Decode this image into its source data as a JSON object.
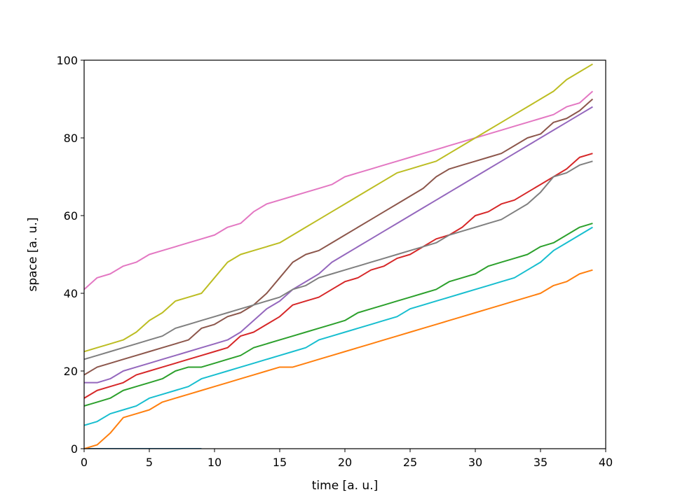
{
  "chart_data": {
    "type": "line",
    "title": "",
    "xlabel": "time [a. u.]",
    "ylabel": "space [a. u.]",
    "xlim": [
      0,
      40
    ],
    "ylim": [
      0,
      100
    ],
    "xticks": [
      0,
      5,
      10,
      15,
      20,
      25,
      30,
      35,
      40
    ],
    "yticks": [
      0,
      20,
      40,
      60,
      80,
      100
    ],
    "grid": false,
    "legend": "none",
    "palette": [
      "#1f77b4",
      "#ff7f0e",
      "#2ca02c",
      "#d62728",
      "#9467bd",
      "#8c564b",
      "#e377c2",
      "#7f7f7f",
      "#bcbd22",
      "#17becf"
    ],
    "description_note_free": true,
    "trajectory_rule": "Each series: x from start time t0 to end, y rises along the listed x/y points; segments clipped to the axes.",
    "series": [
      {
        "x": [
          0,
          1,
          2,
          3,
          4,
          5,
          6,
          7,
          8,
          9
        ],
        "y": [
          0,
          0,
          0,
          0,
          0,
          0,
          0,
          0,
          0,
          0
        ]
      },
      {
        "x": [
          0,
          1,
          2,
          3,
          4,
          5,
          6,
          7,
          8,
          9,
          10,
          11,
          12,
          13,
          14,
          15,
          16,
          17,
          18,
          19,
          20,
          21,
          22,
          23,
          24,
          25,
          26,
          27,
          28,
          29,
          30,
          31,
          32,
          33,
          34,
          35,
          36,
          37,
          38,
          39
        ],
        "y": [
          0,
          1,
          4,
          8,
          9,
          10,
          12,
          13,
          14,
          15,
          16,
          17,
          18,
          19,
          20,
          21,
          21,
          22,
          23,
          24,
          25,
          26,
          27,
          28,
          29,
          30,
          31,
          32,
          33,
          34,
          35,
          36,
          37,
          38,
          39,
          40,
          42,
          43,
          45,
          46
        ]
      },
      {
        "x": [
          0,
          1,
          2,
          3,
          4,
          5,
          6,
          7,
          8,
          9,
          10,
          11,
          12,
          13,
          14,
          15,
          16,
          17,
          18,
          19,
          20,
          21,
          22,
          23,
          24,
          25,
          26,
          27,
          28,
          29,
          30,
          31,
          32,
          33,
          34,
          35,
          36,
          37,
          38,
          39
        ],
        "y": [
          11,
          12,
          13,
          15,
          16,
          17,
          18,
          20,
          21,
          21,
          22,
          23,
          24,
          26,
          27,
          28,
          29,
          30,
          31,
          32,
          33,
          35,
          36,
          37,
          38,
          39,
          40,
          41,
          43,
          44,
          45,
          47,
          48,
          49,
          50,
          52,
          53,
          55,
          57,
          58
        ]
      },
      {
        "x": [
          0,
          1,
          2,
          3,
          4,
          5,
          6,
          7,
          8,
          9,
          10,
          11,
          12,
          13,
          14,
          15,
          16,
          17,
          18,
          19,
          20,
          21,
          22,
          23,
          24,
          25,
          26,
          27,
          28,
          29,
          30,
          31,
          32,
          33,
          34,
          35,
          36,
          37,
          38,
          39
        ],
        "y": [
          13,
          15,
          16,
          17,
          19,
          20,
          21,
          22,
          23,
          24,
          25,
          26,
          29,
          30,
          32,
          34,
          37,
          38,
          39,
          41,
          43,
          44,
          46,
          47,
          49,
          50,
          52,
          54,
          55,
          57,
          60,
          61,
          63,
          64,
          66,
          68,
          70,
          72,
          75,
          76
        ]
      },
      {
        "x": [
          0,
          1,
          2,
          3,
          4,
          5,
          6,
          7,
          8,
          9,
          10,
          11,
          12,
          13,
          14,
          15,
          16,
          17,
          18,
          19,
          20,
          21,
          22,
          23,
          24,
          25,
          26,
          27,
          28,
          29,
          30,
          31,
          32,
          33,
          34,
          35,
          36,
          37,
          38,
          39
        ],
        "y": [
          17,
          17,
          18,
          20,
          21,
          22,
          23,
          24,
          25,
          26,
          27,
          28,
          30,
          33,
          36,
          38,
          41,
          43,
          45,
          48,
          50,
          52,
          54,
          56,
          58,
          60,
          62,
          64,
          66,
          68,
          70,
          72,
          74,
          76,
          78,
          80,
          82,
          84,
          86,
          88
        ]
      },
      {
        "x": [
          0,
          1,
          2,
          3,
          4,
          5,
          6,
          7,
          8,
          9,
          10,
          11,
          12,
          13,
          14,
          15,
          16,
          17,
          18,
          19,
          20,
          21,
          22,
          23,
          24,
          25,
          26,
          27,
          28,
          29,
          30,
          31,
          32,
          33,
          34,
          35,
          36,
          37,
          38,
          39
        ],
        "y": [
          19,
          21,
          22,
          23,
          24,
          25,
          26,
          27,
          28,
          31,
          32,
          34,
          35,
          37,
          40,
          44,
          48,
          50,
          51,
          53,
          55,
          57,
          59,
          61,
          63,
          65,
          67,
          70,
          72,
          73,
          74,
          75,
          76,
          78,
          80,
          81,
          84,
          85,
          87,
          90
        ]
      },
      {
        "x": [
          0,
          1,
          2,
          3,
          4,
          5,
          6,
          7,
          8,
          9,
          10,
          11,
          12,
          13,
          14,
          15,
          16,
          17,
          18,
          19,
          20,
          21,
          22,
          23,
          24,
          25,
          26,
          27,
          28,
          29,
          30,
          31,
          32,
          33,
          34,
          35,
          36,
          37,
          38,
          39
        ],
        "y": [
          41,
          44,
          45,
          47,
          48,
          50,
          51,
          52,
          53,
          54,
          55,
          57,
          58,
          61,
          63,
          64,
          65,
          66,
          67,
          68,
          70,
          71,
          72,
          73,
          74,
          75,
          76,
          77,
          78,
          79,
          80,
          81,
          82,
          83,
          84,
          85,
          86,
          88,
          89,
          92
        ]
      },
      {
        "x": [
          0,
          1,
          2,
          3,
          4,
          5,
          6,
          7,
          8,
          9,
          10,
          11,
          12,
          13,
          14,
          15,
          16,
          17,
          18,
          19,
          20,
          21,
          22,
          23,
          24,
          25,
          26,
          27,
          28,
          29,
          30,
          31,
          32,
          33,
          34,
          35,
          36,
          37,
          38,
          39
        ],
        "y": [
          23,
          24,
          25,
          26,
          27,
          28,
          29,
          31,
          32,
          33,
          34,
          35,
          36,
          37,
          38,
          39,
          41,
          42,
          44,
          45,
          46,
          47,
          48,
          49,
          50,
          51,
          52,
          53,
          55,
          56,
          57,
          58,
          59,
          61,
          63,
          66,
          70,
          71,
          73,
          74
        ]
      },
      {
        "x": [
          0,
          1,
          2,
          3,
          4,
          5,
          6,
          7,
          8,
          9,
          10,
          11,
          12,
          13,
          14,
          15,
          16,
          17,
          18,
          19,
          20,
          21,
          22,
          23,
          24,
          25,
          26,
          27,
          28,
          29,
          30,
          31,
          32,
          33,
          34,
          35,
          36,
          37,
          38,
          39
        ],
        "y": [
          25,
          26,
          27,
          28,
          30,
          33,
          35,
          38,
          39,
          40,
          44,
          48,
          50,
          51,
          52,
          53,
          55,
          57,
          59,
          61,
          63,
          65,
          67,
          69,
          71,
          72,
          73,
          74,
          76,
          78,
          80,
          82,
          84,
          86,
          88,
          90,
          92,
          95,
          97,
          99
        ]
      },
      {
        "x": [
          0,
          1,
          2,
          3,
          4,
          5,
          6,
          7,
          8,
          9,
          10,
          11,
          12,
          13,
          14,
          15,
          16,
          17,
          18,
          19,
          20,
          21,
          22,
          23,
          24,
          25,
          26,
          27,
          28,
          29,
          30,
          31,
          32,
          33,
          34,
          35,
          36,
          37,
          38,
          39
        ],
        "y": [
          6,
          7,
          9,
          10,
          11,
          13,
          14,
          15,
          16,
          18,
          19,
          20,
          21,
          22,
          23,
          24,
          25,
          26,
          28,
          29,
          30,
          31,
          32,
          33,
          34,
          36,
          37,
          38,
          39,
          40,
          41,
          42,
          43,
          44,
          46,
          48,
          51,
          53,
          55,
          57
        ]
      }
    ]
  }
}
